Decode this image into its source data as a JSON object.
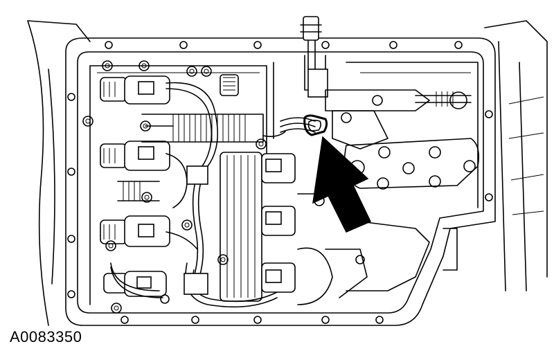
{
  "figure": {
    "id_label": "A0083350",
    "arrow_fill": "#000000",
    "line_color": "#000000",
    "background": "#ffffff"
  }
}
